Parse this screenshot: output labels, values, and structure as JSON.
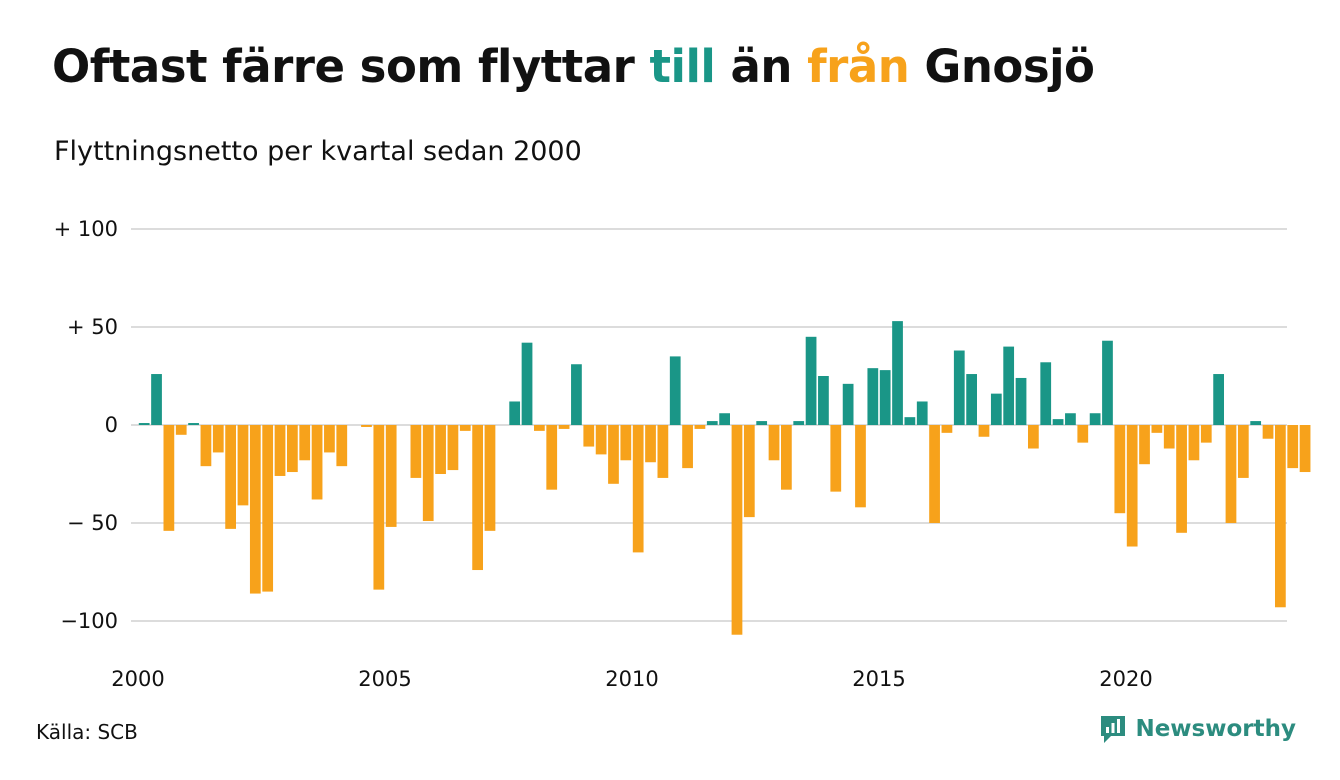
{
  "title": {
    "part1": "Oftast färre som flyttar ",
    "part2": "till",
    "part3": " än ",
    "part4": "från",
    "part5": " Gnosjö"
  },
  "subtitle": "Flyttningsnetto per kvartal sedan 2000",
  "source": "Källa: SCB",
  "brand": "Newsworthy",
  "colors": {
    "positive": "#1a9687",
    "negative": "#f7a21b",
    "grid": "#dcdcdc",
    "brand": "#2c8c7f"
  },
  "chart_data": {
    "type": "bar",
    "ylim": [
      -115,
      100
    ],
    "yticks": [
      100,
      50,
      0,
      -50,
      -100
    ],
    "ytick_labels": [
      "+ 100",
      "+  50",
      "0",
      "− 50",
      "−100"
    ],
    "xticks": [
      2000,
      2005,
      2010,
      2015,
      2020
    ],
    "xtick_labels": [
      "2000",
      "2005",
      "2010",
      "2015",
      "2020"
    ],
    "x_start": 2000,
    "x_step": 0.25,
    "values": [
      1,
      26,
      -54,
      -5,
      1,
      -21,
      -14,
      -53,
      -41,
      -86,
      -85,
      -26,
      -24,
      -18,
      -38,
      -14,
      -21,
      0,
      -1,
      -84,
      -52,
      0,
      -27,
      -49,
      -25,
      -23,
      -3,
      -74,
      -54,
      0,
      12,
      42,
      -3,
      -33,
      -2,
      31,
      -11,
      -15,
      -30,
      -18,
      -65,
      -19,
      -27,
      35,
      -22,
      -2,
      2,
      6,
      -107,
      -47,
      2,
      -18,
      -33,
      2,
      45,
      25,
      -34,
      21,
      -42,
      29,
      28,
      53,
      4,
      12,
      -50,
      -4,
      38,
      26,
      -6,
      16,
      40,
      24,
      -12,
      32,
      3,
      6,
      -9,
      6,
      43,
      -45,
      -62,
      -20,
      -4,
      -12,
      -55,
      -18,
      -9,
      26,
      -50,
      -27,
      2,
      -7,
      -93,
      -22,
      -24
    ]
  }
}
